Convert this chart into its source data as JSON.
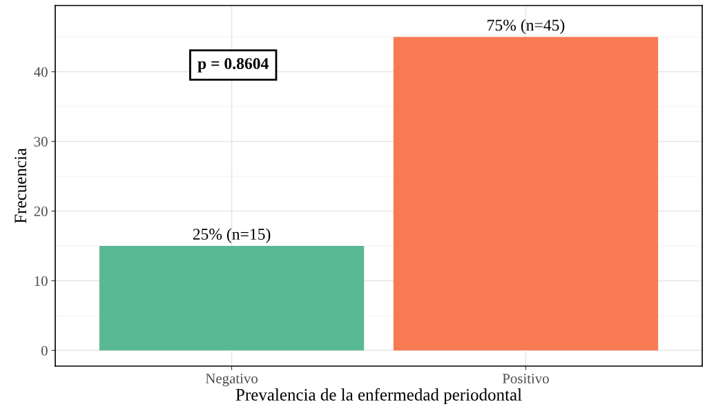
{
  "chart_data": {
    "type": "bar",
    "xlabel": "Prevalencia de la enfermedad periodontal",
    "ylabel": "Frecuencia",
    "categories": [
      "Negativo",
      "Positivo"
    ],
    "values": [
      15,
      45
    ],
    "colors": [
      "#59b994",
      "#f87a52"
    ],
    "value_labels": [
      "25% (n=15)",
      "75% (n=45)"
    ],
    "ylim": [
      -2.25,
      49.5
    ],
    "yticks": [
      0,
      10,
      20,
      30,
      40
    ],
    "grid": true,
    "annotations": [
      "p = 0.8604"
    ]
  }
}
